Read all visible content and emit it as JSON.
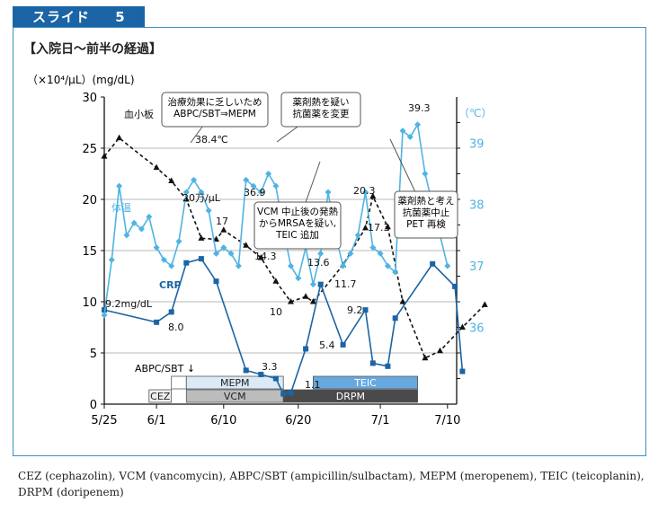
{
  "tab": {
    "label": "スライド",
    "number": "5"
  },
  "heading": "【入院日～前半の経過】",
  "caption": "CEZ (cephazolin), VCM (vancomycin), ABPC/SBT (ampicillin/sulbactam), MEPM (meropenem), TEIC (teicoplanin), DRPM (doripenem)",
  "colors": {
    "frame": "#3b8fc6",
    "tab": "#1b64a5",
    "temp": "#4fb3e3",
    "crp": "#1b64a5",
    "platelet": "#111111"
  },
  "chart_data": {
    "type": "line",
    "x_ticks": [
      "5/25",
      "6/1",
      "6/10",
      "6/20",
      "7/1",
      "7/10"
    ],
    "left_axis": {
      "unit_label": "（×10⁴/μL）(mg/dL)",
      "range": [
        0,
        30
      ],
      "ticks": [
        "0",
        "5",
        "10",
        "15",
        "20",
        "25",
        "30"
      ]
    },
    "right_axis": {
      "unit_label": "（℃）",
      "range": [
        34.75,
        39.75
      ],
      "ticks": [
        "36",
        "37",
        "38",
        "39"
      ]
    },
    "series": [
      {
        "name": "血小板",
        "style": "dashed",
        "color": "#111111",
        "points": [
          [
            "5/25",
            24.2
          ],
          [
            "5/27",
            26.0
          ],
          [
            "6/1",
            23.1
          ],
          [
            "6/3",
            21.8
          ],
          [
            "6/5",
            20.0
          ],
          [
            "6/7",
            16.2
          ],
          [
            "6/9",
            16.1
          ],
          [
            "6/10",
            17.0
          ],
          [
            "6/13",
            15.5
          ],
          [
            "6/15",
            14.3
          ],
          [
            "6/17",
            12.0
          ],
          [
            "6/19",
            10.0
          ],
          [
            "6/21",
            10.5
          ],
          [
            "6/22",
            10.0
          ],
          [
            "6/26",
            13.6
          ],
          [
            "6/29",
            17.2
          ],
          [
            "6/30",
            20.3
          ],
          [
            "7/2",
            17.3
          ],
          [
            "7/4",
            10.0
          ],
          [
            "7/7",
            4.5
          ],
          [
            "7/9",
            5.2
          ],
          [
            "7/12",
            7.5
          ],
          [
            "7/15",
            9.7
          ]
        ]
      },
      {
        "name": "CRP",
        "style": "solid",
        "color": "#1b64a5",
        "points": [
          [
            "5/25",
            9.2
          ],
          [
            "6/1",
            8.0
          ],
          [
            "6/3",
            9.0
          ],
          [
            "6/5",
            13.8
          ],
          [
            "6/7",
            14.2
          ],
          [
            "6/9",
            12.0
          ],
          [
            "6/13",
            3.3
          ],
          [
            "6/15",
            2.9
          ],
          [
            "6/17",
            2.5
          ],
          [
            "6/18",
            1.0
          ],
          [
            "6/19",
            1.1
          ],
          [
            "6/21",
            5.4
          ],
          [
            "6/23",
            11.7
          ],
          [
            "6/26",
            5.8
          ],
          [
            "6/29",
            9.2
          ],
          [
            "6/30",
            4.0
          ],
          [
            "7/2",
            3.7
          ],
          [
            "7/3",
            8.4
          ],
          [
            "7/8",
            13.7
          ],
          [
            "7/11",
            11.5
          ],
          [
            "7/12",
            3.2
          ]
        ]
      },
      {
        "name": "体温",
        "style": "solid",
        "color": "#4fb3e3",
        "axis": "right",
        "points": [
          [
            "5/25",
            36.2
          ],
          [
            "5/26",
            37.1
          ],
          [
            "5/27",
            38.3
          ],
          [
            "5/28",
            37.5
          ],
          [
            "5/29",
            37.7
          ],
          [
            "5/30",
            37.6
          ],
          [
            "5/31",
            37.8
          ],
          [
            "6/1",
            37.3
          ],
          [
            "6/2",
            37.1
          ],
          [
            "6/3",
            37.0
          ],
          [
            "6/4",
            37.4
          ],
          [
            "6/5",
            38.2
          ],
          [
            "6/6",
            38.4
          ],
          [
            "6/7",
            38.2
          ],
          [
            "6/8",
            37.9
          ],
          [
            "6/9",
            37.2
          ],
          [
            "6/10",
            37.3
          ],
          [
            "6/11",
            37.2
          ],
          [
            "6/12",
            37.0
          ],
          [
            "6/13",
            38.4
          ],
          [
            "6/14",
            38.3
          ],
          [
            "6/15",
            38.2
          ],
          [
            "6/16",
            38.5
          ],
          [
            "6/17",
            38.3
          ],
          [
            "6/18",
            37.6
          ],
          [
            "6/19",
            37.0
          ],
          [
            "6/20",
            36.8
          ],
          [
            "6/21",
            37.3
          ],
          [
            "6/22",
            36.7
          ],
          [
            "6/23",
            37.2
          ],
          [
            "6/24",
            38.2
          ],
          [
            "6/25",
            37.5
          ],
          [
            "6/26",
            37.0
          ],
          [
            "6/27",
            37.2
          ],
          [
            "6/28",
            37.5
          ],
          [
            "6/29",
            38.2
          ],
          [
            "6/30",
            37.3
          ],
          [
            "7/1",
            37.2
          ],
          [
            "7/2",
            37.0
          ],
          [
            "7/3",
            36.9
          ],
          [
            "7/4",
            39.2
          ],
          [
            "7/5",
            39.1
          ],
          [
            "7/6",
            39.3
          ],
          [
            "7/7",
            38.5
          ],
          [
            "7/10",
            37.0
          ]
        ]
      }
    ],
    "data_labels": [
      "血小板",
      "38.4℃",
      "20万/μL",
      "36.9",
      "17",
      "14.3",
      "10",
      "13.6",
      "20.3",
      "17.3",
      "39.3",
      "9.2mg/dL",
      "8.0",
      "3.3",
      "1.1",
      "5.4",
      "11.7",
      "9.2",
      "CRP",
      "体温"
    ],
    "annotations": [
      {
        "lines": [
          "治療効果に乏しいため",
          "ABPC/SBT⇒MEPM"
        ]
      },
      {
        "lines": [
          "薬剤熱を疑い",
          "抗菌薬を変更"
        ]
      },
      {
        "lines": [
          "VCM 中止後の発熱",
          "からMRSAを疑い,",
          "TEIC 追加"
        ]
      },
      {
        "lines": [
          "薬剤熱と考え",
          "抗菌薬中止",
          "PET 再検"
        ]
      }
    ],
    "drugs": [
      {
        "label": "CEZ",
        "from": "5/31",
        "to": "6/3",
        "shade": "#eeeeee"
      },
      {
        "label": "ABPC/SBT",
        "from": "6/3",
        "to": "6/5",
        "shade": "#ffffff"
      },
      {
        "label": "VCM",
        "from": "6/5",
        "to": "6/18",
        "shade": "#bcbcbc"
      },
      {
        "label": "MEPM",
        "from": "6/5",
        "to": "6/18",
        "shade": "#dbeaf7"
      },
      {
        "label": "DRPM",
        "from": "6/18",
        "to": "7/6",
        "shade": "#4a4a4a"
      },
      {
        "label": "TEIC",
        "from": "6/22",
        "to": "7/6",
        "shade": "#67a9de"
      }
    ],
    "abpc_marker": "ABPC/SBT ↓",
    "grid": true
  }
}
